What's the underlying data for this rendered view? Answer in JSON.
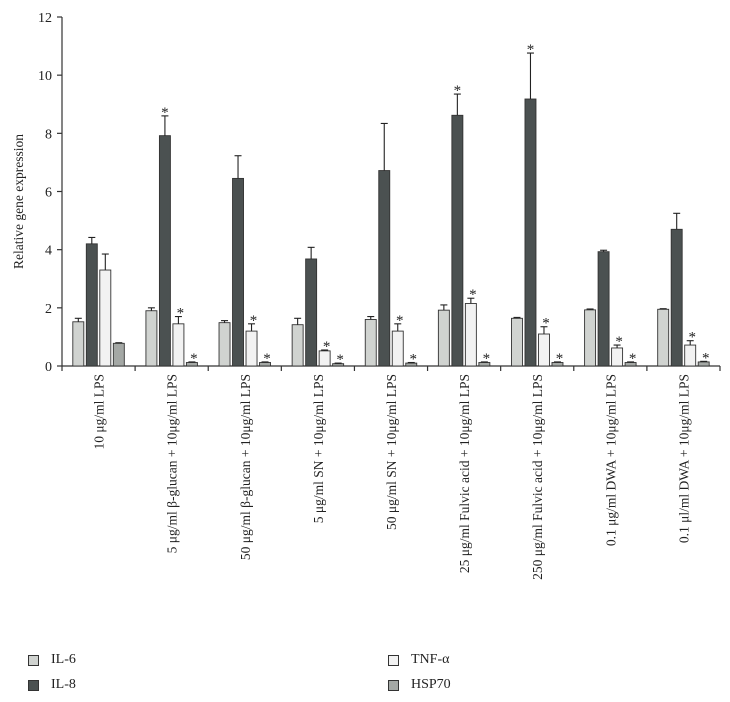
{
  "chart_data": {
    "type": "bar",
    "title": "",
    "xlabel": "",
    "ylabel": "Relative gene expression",
    "ylim": [
      0,
      12
    ],
    "yticks": [
      "0",
      "2",
      "4",
      "6",
      "8",
      "10",
      "12"
    ],
    "categories": [
      "10 μg/ml LPS",
      "5 μg/ml β-glucan + 10μg/ml LPS",
      "50 μg/ml β-glucan + 10μg/ml LPS",
      "5 μg/ml SN + 10μg/ml LPS",
      "50 μg/ml SN + 10μg/ml LPS",
      "25 μg/ml Fulvic acid + 10μg/ml LPS",
      "250 μg/ml Fulvic acid + 10μg/ml LPS",
      "0.1 μg/ml DWA + 10μg/ml LPS",
      "0.1 μl/ml DWA + 10μg/ml LPS"
    ],
    "significance_mark": "*",
    "series": [
      {
        "name": "IL-6",
        "color": "#d0d3d0",
        "values": [
          1.52,
          1.9,
          1.49,
          1.42,
          1.6,
          1.92,
          1.64,
          1.93,
          1.95
        ],
        "errors": [
          0.12,
          0.1,
          0.07,
          0.22,
          0.1,
          0.18,
          0.03,
          0.03,
          0.02
        ],
        "significant": [
          false,
          false,
          false,
          false,
          false,
          false,
          false,
          false,
          false
        ]
      },
      {
        "name": "IL-8",
        "color": "#4b5151",
        "values": [
          4.2,
          7.92,
          6.45,
          3.68,
          6.72,
          8.62,
          9.18,
          3.93,
          4.7
        ],
        "errors": [
          0.22,
          0.68,
          0.78,
          0.4,
          1.62,
          0.73,
          1.58,
          0.05,
          0.55
        ],
        "significant": [
          false,
          true,
          false,
          false,
          false,
          true,
          true,
          false,
          false
        ]
      },
      {
        "name": "TNF-α",
        "color": "#f2f2f2",
        "values": [
          3.3,
          1.45,
          1.2,
          0.52,
          1.2,
          2.15,
          1.1,
          0.62,
          0.72
        ],
        "errors": [
          0.55,
          0.25,
          0.25,
          0.03,
          0.25,
          0.18,
          0.25,
          0.1,
          0.15
        ],
        "significant": [
          false,
          true,
          true,
          true,
          true,
          true,
          true,
          true,
          true
        ]
      },
      {
        "name": "HSP70",
        "color": "#a4a8a5",
        "values": [
          0.78,
          0.12,
          0.12,
          0.08,
          0.1,
          0.12,
          0.12,
          0.12,
          0.14
        ],
        "errors": [
          0.02,
          0.02,
          0.02,
          0.02,
          0.02,
          0.02,
          0.02,
          0.02,
          0.02
        ],
        "significant": [
          false,
          true,
          true,
          true,
          true,
          true,
          true,
          true,
          true
        ]
      }
    ],
    "legend_position": "bottom"
  }
}
